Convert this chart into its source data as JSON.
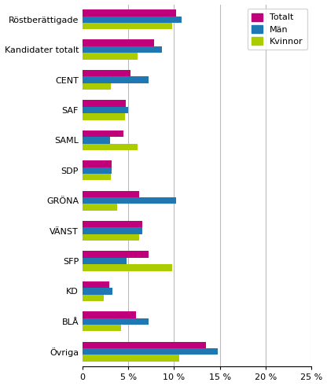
{
  "categories": [
    "Röstberättigade",
    "Kandidater totalt",
    "CENT",
    "SAF",
    "SAML",
    "SDP",
    "GRÖNA",
    "VÄNST",
    "SFP",
    "KD",
    "BLÅ",
    "Övriga"
  ],
  "totalt": [
    10.2,
    7.8,
    5.2,
    4.7,
    4.5,
    3.2,
    6.2,
    6.5,
    7.2,
    2.9,
    5.8,
    13.5
  ],
  "man": [
    10.8,
    8.7,
    7.2,
    5.0,
    3.0,
    3.2,
    10.2,
    6.5,
    4.8,
    3.3,
    7.2,
    14.8
  ],
  "kvinnor": [
    9.8,
    6.0,
    3.1,
    4.6,
    6.0,
    3.1,
    3.8,
    6.2,
    9.8,
    2.3,
    4.2,
    10.6
  ],
  "color_totalt": "#c0007a",
  "color_man": "#1f78b4",
  "color_kvinnor": "#aacc00",
  "xlim": [
    0,
    25
  ],
  "xticks": [
    0,
    5,
    10,
    15,
    20,
    25
  ],
  "xticklabels": [
    "0",
    "5 %",
    "10 %",
    "15 %",
    "20 %",
    "25 %"
  ],
  "legend_labels": [
    "Totalt",
    "Män",
    "Kvinnor"
  ],
  "bar_height": 0.22,
  "grid_color": "#bbbbbb"
}
